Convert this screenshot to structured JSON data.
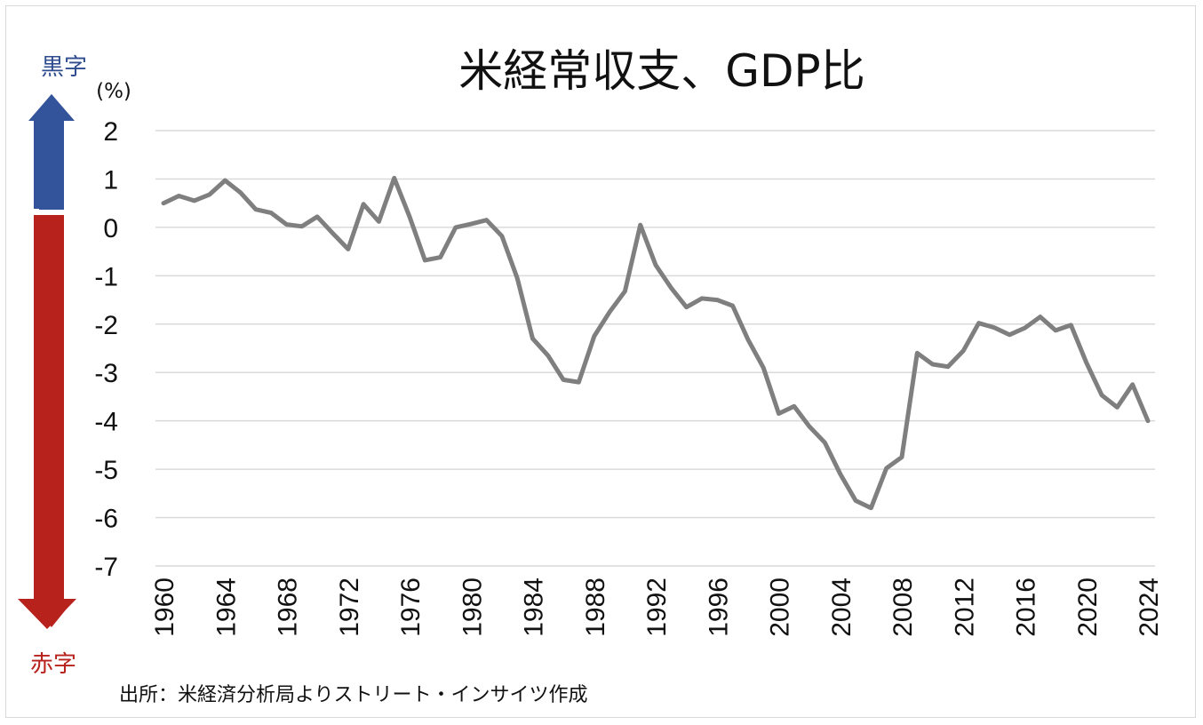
{
  "chart_data": {
    "type": "line",
    "title": "米経常収支、GDP比",
    "unit_label": "(%)",
    "surplus_label": "黒字",
    "deficit_label": "赤字",
    "source": "出所：米経済分析局よりストリート・インサイツ作成",
    "ylim": [
      -7,
      2
    ],
    "yticks": [
      "2",
      "1",
      "0",
      "-1",
      "-2",
      "-3",
      "-4",
      "-5",
      "-6",
      "-7"
    ],
    "xlim": [
      1960,
      2024
    ],
    "xticks": [
      "1960",
      "1964",
      "1968",
      "1972",
      "1976",
      "1980",
      "1984",
      "1988",
      "1992",
      "1996",
      "2000",
      "2004",
      "2008",
      "2012",
      "2016",
      "2020",
      "2024"
    ],
    "grid": true,
    "series": [
      {
        "color": "#7f7f7f",
        "x": [
          1960,
          1961,
          1962,
          1963,
          1964,
          1965,
          1966,
          1967,
          1968,
          1969,
          1970,
          1971,
          1972,
          1973,
          1974,
          1975,
          1976,
          1977,
          1978,
          1979,
          1980,
          1981,
          1982,
          1983,
          1984,
          1985,
          1986,
          1987,
          1988,
          1989,
          1990,
          1991,
          1992,
          1993,
          1994,
          1995,
          1996,
          1997,
          1998,
          1999,
          2000,
          2001,
          2002,
          2003,
          2004,
          2005,
          2006,
          2007,
          2008,
          2009,
          2010,
          2011,
          2012,
          2013,
          2014,
          2015,
          2016,
          2017,
          2018,
          2019,
          2020,
          2021,
          2022,
          2023,
          2024
        ],
        "values": [
          0.5,
          0.65,
          0.55,
          0.68,
          0.97,
          0.72,
          0.37,
          0.3,
          0.06,
          0.02,
          0.22,
          -0.12,
          -0.45,
          0.48,
          0.12,
          1.02,
          0.22,
          -0.68,
          -0.62,
          0.0,
          0.07,
          0.15,
          -0.18,
          -1.05,
          -2.3,
          -2.65,
          -3.15,
          -3.2,
          -2.25,
          -1.75,
          -1.32,
          0.05,
          -0.78,
          -1.25,
          -1.65,
          -1.47,
          -1.5,
          -1.62,
          -2.32,
          -2.9,
          -3.85,
          -3.7,
          -4.12,
          -4.45,
          -5.1,
          -5.65,
          -5.8,
          -4.98,
          -4.75,
          -2.6,
          -2.83,
          -2.88,
          -2.55,
          -1.98,
          -2.07,
          -2.22,
          -2.08,
          -1.85,
          -2.13,
          -2.02,
          -2.8,
          -3.47,
          -3.72,
          -3.25,
          -4.0
        ]
      }
    ]
  }
}
